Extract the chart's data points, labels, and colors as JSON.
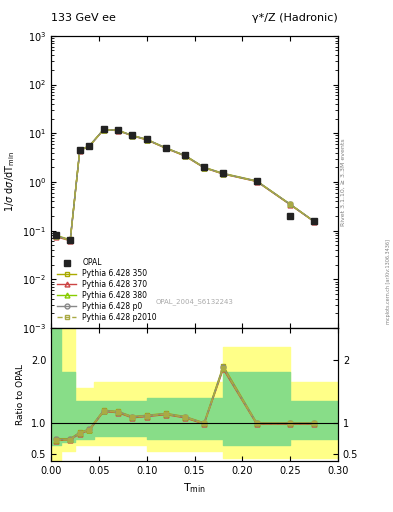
{
  "title_left": "133 GeV ee",
  "title_right": "γ*/Z (Hadronic)",
  "ylabel_main": "1/σ dσ/dT_min",
  "ylabel_ratio": "Ratio to OPAL",
  "xlabel": "T_min",
  "right_label_top": "Rivet 3.1.10, ≥ 3.3M events",
  "right_label_bottom": "mcplots.cern.ch [arXiv:1306.3436]",
  "watermark": "OPAL_2004_S6132243",
  "opal_x": [
    0.005,
    0.02,
    0.03,
    0.04,
    0.055,
    0.07,
    0.085,
    0.1,
    0.12,
    0.14,
    0.16,
    0.18,
    0.215,
    0.25,
    0.275
  ],
  "opal_y": [
    0.08,
    0.065,
    4.5,
    5.5,
    12.0,
    11.5,
    9.0,
    7.5,
    5.0,
    3.5,
    2.0,
    1.5,
    1.05,
    0.2,
    0.155
  ],
  "main_x": [
    0.005,
    0.02,
    0.03,
    0.04,
    0.055,
    0.07,
    0.085,
    0.1,
    0.12,
    0.14,
    0.16,
    0.18,
    0.215,
    0.25,
    0.275
  ],
  "py350_y": [
    0.08,
    0.065,
    4.5,
    5.5,
    12.0,
    11.5,
    9.0,
    7.5,
    5.0,
    3.5,
    2.0,
    1.5,
    1.05,
    0.35,
    0.155
  ],
  "py370_y": [
    0.075,
    0.062,
    4.4,
    5.4,
    11.8,
    11.3,
    8.8,
    7.3,
    4.9,
    3.4,
    1.95,
    1.45,
    1.02,
    0.34,
    0.153
  ],
  "py380_y": [
    0.079,
    0.063,
    4.45,
    5.45,
    11.9,
    11.4,
    8.9,
    7.4,
    4.95,
    3.45,
    1.97,
    1.47,
    1.03,
    0.345,
    0.154
  ],
  "pyp0_y": [
    0.078,
    0.064,
    4.48,
    5.48,
    11.95,
    11.45,
    8.95,
    7.45,
    4.98,
    3.48,
    1.98,
    1.48,
    1.04,
    0.347,
    0.155
  ],
  "pyp2010_y": [
    0.077,
    0.063,
    4.46,
    5.46,
    11.92,
    11.42,
    8.92,
    7.42,
    4.96,
    3.46,
    1.96,
    1.46,
    1.035,
    0.346,
    0.154
  ],
  "ratio_x": [
    0.005,
    0.02,
    0.03,
    0.04,
    0.055,
    0.07,
    0.085,
    0.1,
    0.12,
    0.14,
    0.16,
    0.18,
    0.215,
    0.25,
    0.275
  ],
  "ratio_py350": [
    0.75,
    0.75,
    0.85,
    0.9,
    1.2,
    1.18,
    1.1,
    1.12,
    1.15,
    1.1,
    1.0,
    1.9,
    1.0,
    1.0,
    1.0
  ],
  "ratio_py370": [
    0.72,
    0.73,
    0.83,
    0.88,
    1.18,
    1.16,
    1.08,
    1.1,
    1.13,
    1.08,
    0.98,
    1.85,
    0.98,
    0.98,
    0.98
  ],
  "ratio_py380": [
    0.73,
    0.74,
    0.84,
    0.89,
    1.19,
    1.17,
    1.09,
    1.11,
    1.14,
    1.09,
    0.99,
    1.87,
    0.99,
    0.99,
    0.99
  ],
  "ratio_pyp0": [
    0.74,
    0.74,
    0.845,
    0.895,
    1.195,
    1.175,
    1.095,
    1.115,
    1.145,
    1.095,
    0.995,
    1.88,
    0.995,
    0.995,
    0.995
  ],
  "ratio_pyp2010": [
    0.73,
    0.73,
    0.84,
    0.89,
    1.19,
    1.17,
    1.09,
    1.11,
    1.14,
    1.09,
    0.99,
    1.87,
    0.99,
    0.99,
    0.99
  ],
  "band_x_edges": [
    0.0,
    0.01,
    0.025,
    0.045,
    0.1,
    0.18,
    0.25,
    0.3
  ],
  "yellow_lo": [
    0.4,
    0.55,
    0.65,
    0.65,
    0.55,
    0.45,
    0.45,
    0.45
  ],
  "yellow_hi": [
    2.8,
    2.5,
    1.55,
    1.65,
    1.65,
    2.2,
    1.65,
    1.65
  ],
  "green_lo": [
    0.65,
    0.7,
    0.75,
    0.8,
    0.75,
    0.65,
    0.75,
    0.75
  ],
  "green_hi": [
    2.5,
    1.8,
    1.35,
    1.35,
    1.4,
    1.8,
    1.35,
    1.35
  ],
  "color_py350": "#aaaa00",
  "color_py370": "#cc4444",
  "color_py380": "#88cc00",
  "color_pyp0": "#888888",
  "color_pyp2010": "#aaaa44",
  "color_opal": "#222222",
  "color_yellow": "#ffff88",
  "color_green": "#88dd88",
  "ylim_main": [
    0.001,
    1000
  ],
  "ylim_ratio": [
    0.4,
    2.5
  ],
  "xlim": [
    0.0,
    0.3
  ]
}
